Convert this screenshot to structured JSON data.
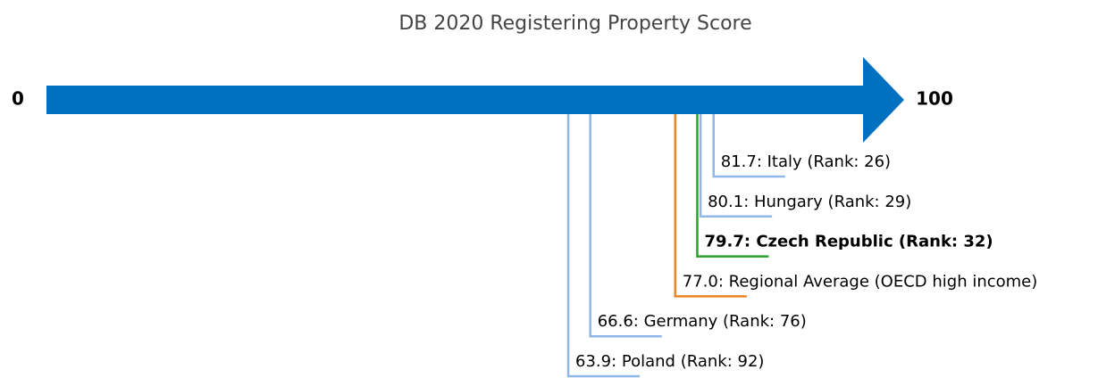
{
  "chart_data": {
    "type": "number-line",
    "title": "DB 2020 Registering Property Score",
    "xlim": [
      0,
      100
    ],
    "xticks": [
      0,
      100
    ],
    "arrow_color": "#0070c0",
    "values": [
      81.7,
      80.1,
      79.7,
      77.0,
      66.6,
      63.9
    ],
    "value_labels": [
      "81.7: Italy (Rank: 26)",
      "80.1: Hungary (Rank: 29)",
      "79.7: Czech Republic (Rank: 32)",
      "77.0: Regional Average (OECD high income)",
      "66.6: Germany (Rank: 76)",
      "63.9: Poland (Rank: 92)"
    ],
    "colors": [
      "#8fb8e8",
      "#8fb8e8",
      "#2ca02c",
      "#ee8422",
      "#8fb8e8",
      "#8fb8e8"
    ],
    "bold": [
      false,
      false,
      true,
      false,
      false,
      false
    ]
  }
}
